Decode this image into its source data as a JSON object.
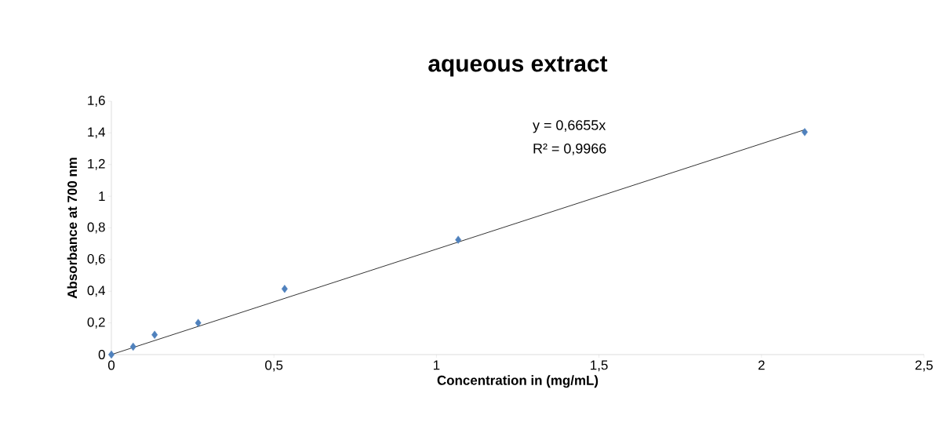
{
  "chart_data": {
    "type": "scatter",
    "title": "aqueous extract",
    "xlabel": "Concentration in (mg/mL)",
    "ylabel": "Absorbance at 700 nm",
    "xlim": [
      0,
      2.5
    ],
    "ylim": [
      0,
      1.6
    ],
    "xticks": [
      0,
      {
        "value": 0.5,
        "label": "0,5"
      },
      1,
      {
        "value": 1.5,
        "label": "1,5"
      },
      2,
      {
        "value": 2.5,
        "label": "2,5"
      }
    ],
    "yticks": [
      0,
      {
        "value": 0.2,
        "label": "0,2"
      },
      {
        "value": 0.4,
        "label": "0,4"
      },
      {
        "value": 0.6,
        "label": "0,6"
      },
      {
        "value": 0.8,
        "label": "0,8"
      },
      1,
      {
        "value": 1.2,
        "label": "1,2"
      },
      {
        "value": 1.4,
        "label": "1,4"
      },
      {
        "value": 1.6,
        "label": "1,6"
      }
    ],
    "grid": false,
    "marker": "diamond",
    "series": [
      {
        "type": "scatter",
        "color": "#4f81bd",
        "x": [
          0,
          0.067,
          0.133,
          0.267,
          0.533,
          1.067,
          2.133
        ],
        "values": [
          0,
          0.05,
          0.125,
          0.2,
          0.415,
          0.725,
          1.405
        ]
      },
      {
        "type": "line",
        "color": "#000000",
        "marker": "none",
        "x": [
          0,
          2.133
        ],
        "values": [
          0,
          1.42
        ]
      }
    ],
    "annotations": [
      "y = 0,6655x",
      "R² = 0,9966"
    ]
  }
}
